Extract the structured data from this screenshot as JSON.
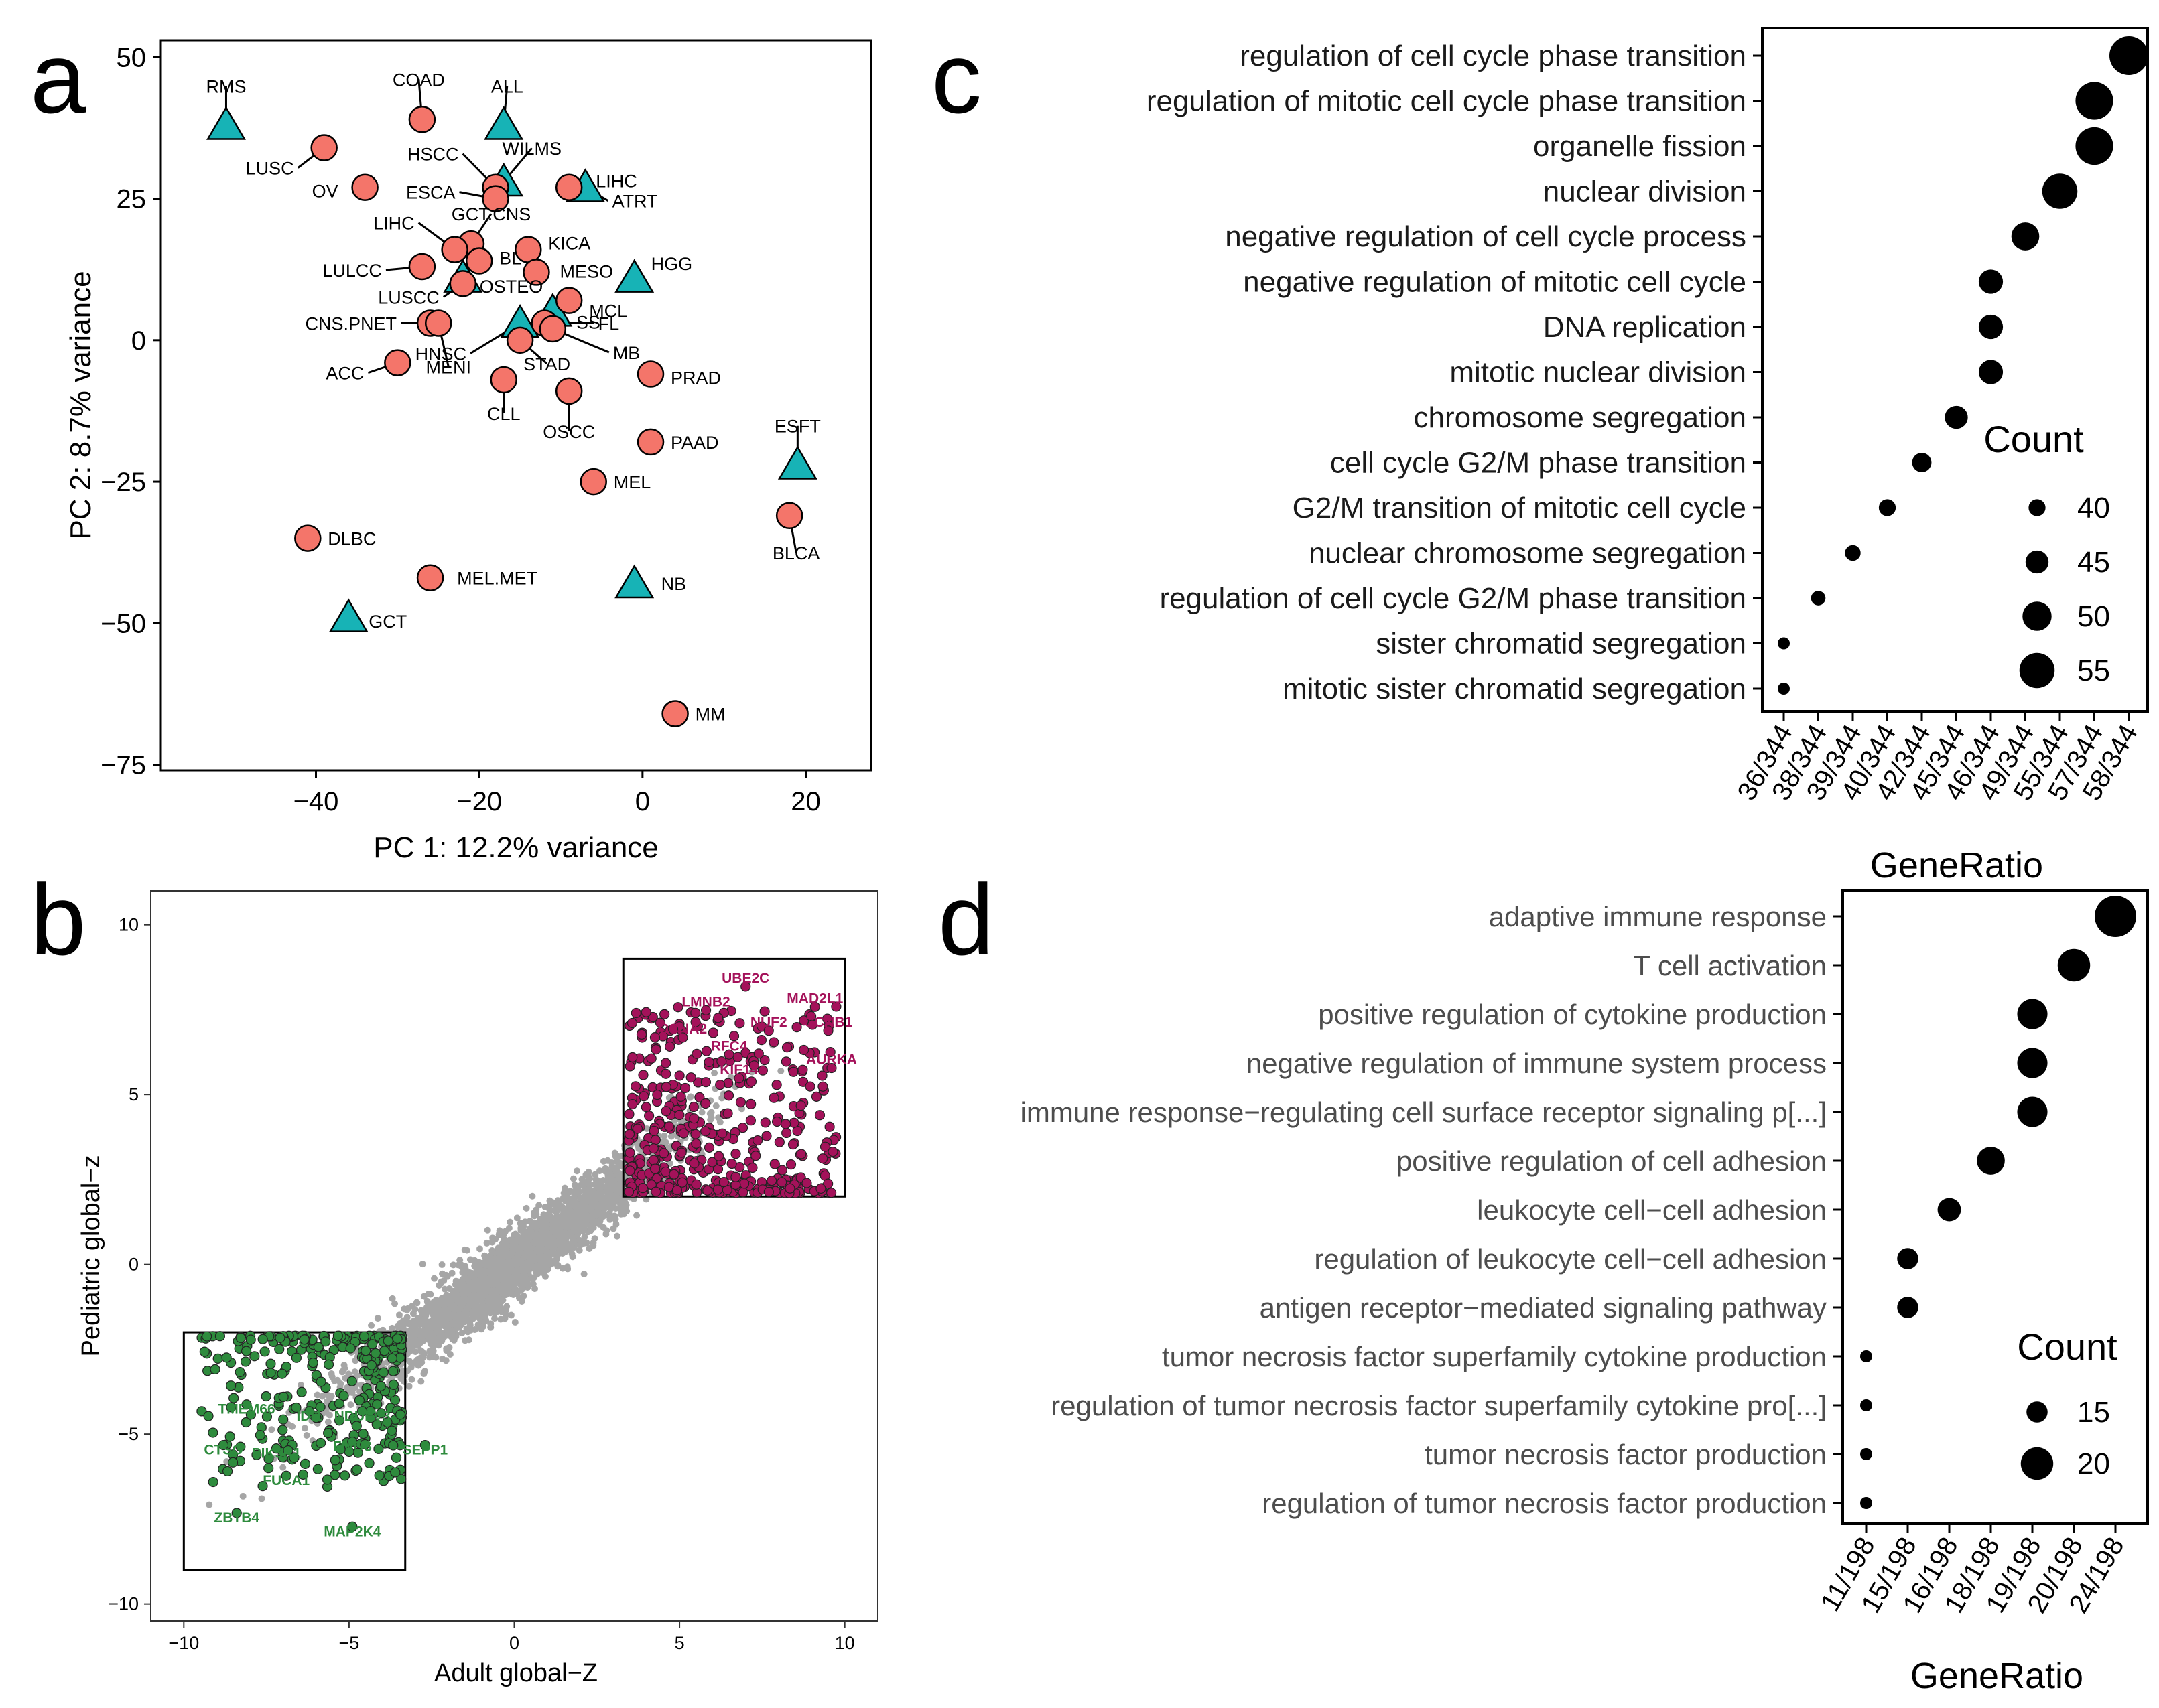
{
  "panels": {
    "a": "a",
    "b": "b",
    "c": "c",
    "d": "d"
  },
  "chart_data": [
    {
      "panel": "a",
      "type": "scatter",
      "xlabel": "PC 1: 12.2% variance",
      "ylabel": "PC 2: 8.7% variance",
      "xlim": [
        -59,
        28
      ],
      "ylim": [
        -76,
        53
      ],
      "xticks": [
        -40,
        -20,
        0,
        20
      ],
      "yticks": [
        50,
        25,
        0,
        -25,
        -50,
        -75
      ],
      "grid": false,
      "colors": {
        "circle": "#f4756a",
        "triangle": "#17b3b6"
      },
      "points": [
        {
          "label": "RMS",
          "x": -51,
          "y": 38,
          "shape": "triangle"
        },
        {
          "label": "ALL",
          "x": -17,
          "y": 38,
          "shape": "triangle"
        },
        {
          "label": "WILMS",
          "x": -17,
          "y": 28,
          "shape": "triangle"
        },
        {
          "label": "ATRT",
          "x": -7,
          "y": 27,
          "shape": "triangle"
        },
        {
          "label": "HGG",
          "x": -1,
          "y": 11,
          "shape": "triangle"
        },
        {
          "label": "OSTEO",
          "x": -22,
          "y": 11,
          "shape": "triangle"
        },
        {
          "label": "HNSC",
          "x": -15,
          "y": 3,
          "shape": "triangle"
        },
        {
          "label": "SS",
          "x": -11,
          "y": 5,
          "shape": "triangle"
        },
        {
          "label": "ESFT",
          "x": 19,
          "y": -22,
          "shape": "triangle"
        },
        {
          "label": "NB",
          "x": -1,
          "y": -43,
          "shape": "triangle"
        },
        {
          "label": "GCT",
          "x": -36,
          "y": -49,
          "shape": "triangle"
        },
        {
          "label": "COAD",
          "x": -27,
          "y": 39,
          "shape": "circle"
        },
        {
          "label": "LUSC",
          "x": -39,
          "y": 34,
          "shape": "circle"
        },
        {
          "label": "OV",
          "x": -34,
          "y": 27,
          "shape": "circle"
        },
        {
          "label": "HSCC",
          "x": -18,
          "y": 27,
          "shape": "circle"
        },
        {
          "label": "ESCA",
          "x": -18,
          "y": 25,
          "shape": "circle"
        },
        {
          "label": "LIHC",
          "x": -9,
          "y": 27,
          "shape": "circle"
        },
        {
          "label": "GCT.CNS",
          "x": -21,
          "y": 17,
          "shape": "circle"
        },
        {
          "label": "LIHC",
          "x": -23,
          "y": 16,
          "shape": "circle"
        },
        {
          "label": "BL",
          "x": -20,
          "y": 14,
          "shape": "circle"
        },
        {
          "label": "KICA",
          "x": -14,
          "y": 16,
          "shape": "circle"
        },
        {
          "label": "MESO",
          "x": -13,
          "y": 12,
          "shape": "circle"
        },
        {
          "label": "LULCC",
          "x": -27,
          "y": 13,
          "shape": "circle"
        },
        {
          "label": "LUSCC",
          "x": -22,
          "y": 10,
          "shape": "circle"
        },
        {
          "label": "MCL",
          "x": -9,
          "y": 7,
          "shape": "circle"
        },
        {
          "label": "CNS.PNET",
          "x": -26,
          "y": 3,
          "shape": "circle"
        },
        {
          "label": "MENI",
          "x": -25,
          "y": 3,
          "shape": "circle"
        },
        {
          "label": "FL",
          "x": -12,
          "y": 3,
          "shape": "circle"
        },
        {
          "label": "MB",
          "x": -11,
          "y": 2,
          "shape": "circle"
        },
        {
          "label": "STAD",
          "x": -15,
          "y": 0,
          "shape": "circle"
        },
        {
          "label": "ACC",
          "x": -30,
          "y": -4,
          "shape": "circle"
        },
        {
          "label": "CLL",
          "x": -17,
          "y": -7,
          "shape": "circle"
        },
        {
          "label": "PRAD",
          "x": 1,
          "y": -6,
          "shape": "circle"
        },
        {
          "label": "OSCC",
          "x": -9,
          "y": -9,
          "shape": "circle"
        },
        {
          "label": "PAAD",
          "x": 1,
          "y": -18,
          "shape": "circle"
        },
        {
          "label": "MEL",
          "x": -6,
          "y": -25,
          "shape": "circle"
        },
        {
          "label": "BLCA",
          "x": 18,
          "y": -31,
          "shape": "circle"
        },
        {
          "label": "DLBC",
          "x": -41,
          "y": -35,
          "shape": "circle"
        },
        {
          "label": "MEL.MET",
          "x": -26,
          "y": -42,
          "shape": "circle"
        },
        {
          "label": "MM",
          "x": 4,
          "y": -66,
          "shape": "circle"
        }
      ]
    },
    {
      "panel": "b",
      "type": "scatter",
      "xlabel": "Adult global−Z",
      "ylabel": "Pediatric global−z",
      "xlim": [
        -11,
        11
      ],
      "ylim": [
        -10.5,
        11
      ],
      "xticks": [
        -10,
        -5,
        0,
        5,
        10
      ],
      "yticks": [
        10,
        5,
        0,
        -5,
        -10
      ],
      "grid": false,
      "colors": {
        "background": "#a6a6a6",
        "up": "#a4125a",
        "down": "#2e8b3d"
      },
      "up_box": {
        "x": [
          3.3,
          10
        ],
        "y": [
          2,
          9
        ]
      },
      "down_box": {
        "x": [
          -10,
          -3.3
        ],
        "y": [
          -9,
          -2
        ]
      },
      "up_labels": [
        {
          "label": "UBE2C",
          "x": 7.0,
          "y": 8.3
        },
        {
          "label": "MAD2L1",
          "x": 9.1,
          "y": 7.7
        },
        {
          "label": "LMNB2",
          "x": 5.8,
          "y": 7.6
        },
        {
          "label": "CCNB1",
          "x": 9.5,
          "y": 7.0
        },
        {
          "label": "NUF2",
          "x": 7.7,
          "y": 7.0
        },
        {
          "label": "CCNA2",
          "x": 5.1,
          "y": 6.8
        },
        {
          "label": "RFC4",
          "x": 6.5,
          "y": 6.3
        },
        {
          "label": "AURKA",
          "x": 9.6,
          "y": 5.9
        },
        {
          "label": "KIF14",
          "x": 6.8,
          "y": 5.6
        }
      ],
      "down_labels": [
        {
          "label": "TMEM66",
          "x": -8.1,
          "y": -4.4
        },
        {
          "label": "IDI1",
          "x": -6.2,
          "y": -4.6
        },
        {
          "label": "NDUFV3",
          "x": -4.6,
          "y": -4.6
        },
        {
          "label": "CTSO",
          "x": -8.8,
          "y": -5.6
        },
        {
          "label": "PIK3R1",
          "x": -7.2,
          "y": -5.7
        },
        {
          "label": "FMO3",
          "x": -4.9,
          "y": -5.5
        },
        {
          "label": "SEPP1",
          "x": -2.7,
          "y": -5.6
        },
        {
          "label": "FUCA1",
          "x": -6.9,
          "y": -6.5
        },
        {
          "label": "ZBTB4",
          "x": -8.4,
          "y": -7.6
        },
        {
          "label": "MAP2K4",
          "x": -4.9,
          "y": -8.0
        }
      ]
    },
    {
      "panel": "c",
      "type": "scatter",
      "xlabel": "GeneRatio",
      "ylabel": "",
      "xticks": [
        "36/344",
        "38/344",
        "39/344",
        "40/344",
        "42/344",
        "45/344",
        "46/344",
        "49/344",
        "55/344",
        "57/344",
        "58/344"
      ],
      "legend_title": "Count",
      "legend": [
        40,
        45,
        50,
        55
      ],
      "terms": [
        {
          "term": "regulation of cell cycle phase transition",
          "x": "58/344",
          "count": 58
        },
        {
          "term": "regulation of mitotic cell cycle phase transition",
          "x": "57/344",
          "count": 57
        },
        {
          "term": "organelle fission",
          "x": "57/344",
          "count": 57
        },
        {
          "term": "nuclear division",
          "x": "55/344",
          "count": 55
        },
        {
          "term": "negative regulation of cell cycle process",
          "x": "49/344",
          "count": 49
        },
        {
          "term": "negative regulation of mitotic cell cycle",
          "x": "46/344",
          "count": 46
        },
        {
          "term": "DNA replication",
          "x": "46/344",
          "count": 46
        },
        {
          "term": "mitotic nuclear division",
          "x": "46/344",
          "count": 46
        },
        {
          "term": "chromosome segregation",
          "x": "45/344",
          "count": 45
        },
        {
          "term": "cell cycle G2/M phase transition",
          "x": "42/344",
          "count": 42
        },
        {
          "term": "G2/M transition of mitotic cell cycle",
          "x": "40/344",
          "count": 40
        },
        {
          "term": "nuclear chromosome segregation",
          "x": "39/344",
          "count": 39
        },
        {
          "term": "regulation of cell cycle G2/M phase transition",
          "x": "38/344",
          "count": 38
        },
        {
          "term": "sister chromatid segregation",
          "x": "36/344",
          "count": 36
        },
        {
          "term": "mitotic sister chromatid segregation",
          "x": "36/344",
          "count": 36
        }
      ]
    },
    {
      "panel": "d",
      "type": "scatter",
      "xlabel": "GeneRatio",
      "ylabel": "",
      "xticks": [
        "11/198",
        "15/198",
        "16/198",
        "18/198",
        "19/198",
        "20/198",
        "24/198"
      ],
      "legend_title": "Count",
      "legend": [
        15,
        20
      ],
      "terms": [
        {
          "term": "adaptive immune response",
          "x": "24/198",
          "count": 24
        },
        {
          "term": "T cell activation",
          "x": "20/198",
          "count": 20
        },
        {
          "term": "positive regulation of cytokine production",
          "x": "19/198",
          "count": 19
        },
        {
          "term": "negative regulation of immune system process",
          "x": "19/198",
          "count": 19
        },
        {
          "term": "immune response−regulating cell surface receptor signaling p[...]",
          "x": "19/198",
          "count": 19
        },
        {
          "term": "positive regulation of cell adhesion",
          "x": "18/198",
          "count": 18
        },
        {
          "term": "leukocyte cell−cell adhesion",
          "x": "16/198",
          "count": 16
        },
        {
          "term": "regulation of leukocyte cell−cell adhesion",
          "x": "15/198",
          "count": 15
        },
        {
          "term": "antigen receptor−mediated signaling pathway",
          "x": "15/198",
          "count": 15
        },
        {
          "term": "tumor necrosis factor superfamily cytokine production",
          "x": "11/198",
          "count": 11
        },
        {
          "term": "regulation of tumor necrosis factor superfamily cytokine pro[...]",
          "x": "11/198",
          "count": 11
        },
        {
          "term": "tumor necrosis factor production",
          "x": "11/198",
          "count": 11
        },
        {
          "term": "regulation of tumor necrosis factor production",
          "x": "11/198",
          "count": 11
        }
      ]
    }
  ]
}
